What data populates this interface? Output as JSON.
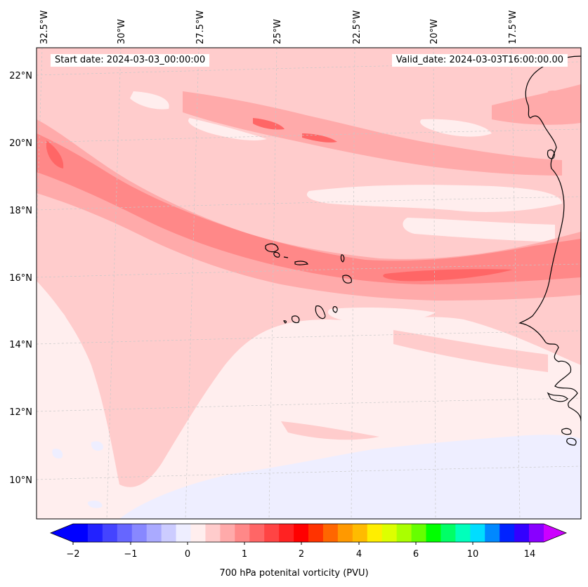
{
  "map": {
    "start_date": "Start date: 2024-03-03_00:00:00",
    "valid_date": "Valid_date: 2024-03-03T16:00:00.00",
    "lon_labels": [
      "32.5°W",
      "30°W",
      "27.5°W",
      "25°W",
      "22.5°W",
      "20°W",
      "17.5°W"
    ],
    "lat_labels": [
      "22°N",
      "20°N",
      "18°N",
      "16°N",
      "14°N",
      "12°N",
      "10°N"
    ],
    "colorbar": {
      "title": "700 hPa potenital vorticity (PVU)",
      "tick_labels": [
        "−2",
        "−1",
        "0",
        "1",
        "2",
        "4",
        "6",
        "10",
        "14"
      ],
      "colors": [
        "#0000ff",
        "#2222ff",
        "#4444ff",
        "#6666ff",
        "#8888ff",
        "#aaaaff",
        "#ccccff",
        "#eeeeff",
        "#ffeeee",
        "#ffcccc",
        "#ffaaaa",
        "#ff8888",
        "#ff6666",
        "#ff4444",
        "#ff2222",
        "#ff0000",
        "#ff3300",
        "#ff6600",
        "#ff9900",
        "#ffbb00",
        "#ffee00",
        "#ddff00",
        "#aaff00",
        "#66ff00",
        "#00ff00",
        "#00ff66",
        "#00ffbb",
        "#00ddff",
        "#0088ff",
        "#0022ff",
        "#3300ff",
        "#8800ff"
      ],
      "under_color": "#0000ff",
      "over_color": "#cc00ff"
    },
    "field_colors": {
      "lightest": "#ffeeee",
      "light": "#ffcccc",
      "medium": "#ffaaaa",
      "strong": "#ff8888",
      "stronger": "#ff6666",
      "negative": "#eeeeff",
      "coast": "#000000"
    }
  }
}
